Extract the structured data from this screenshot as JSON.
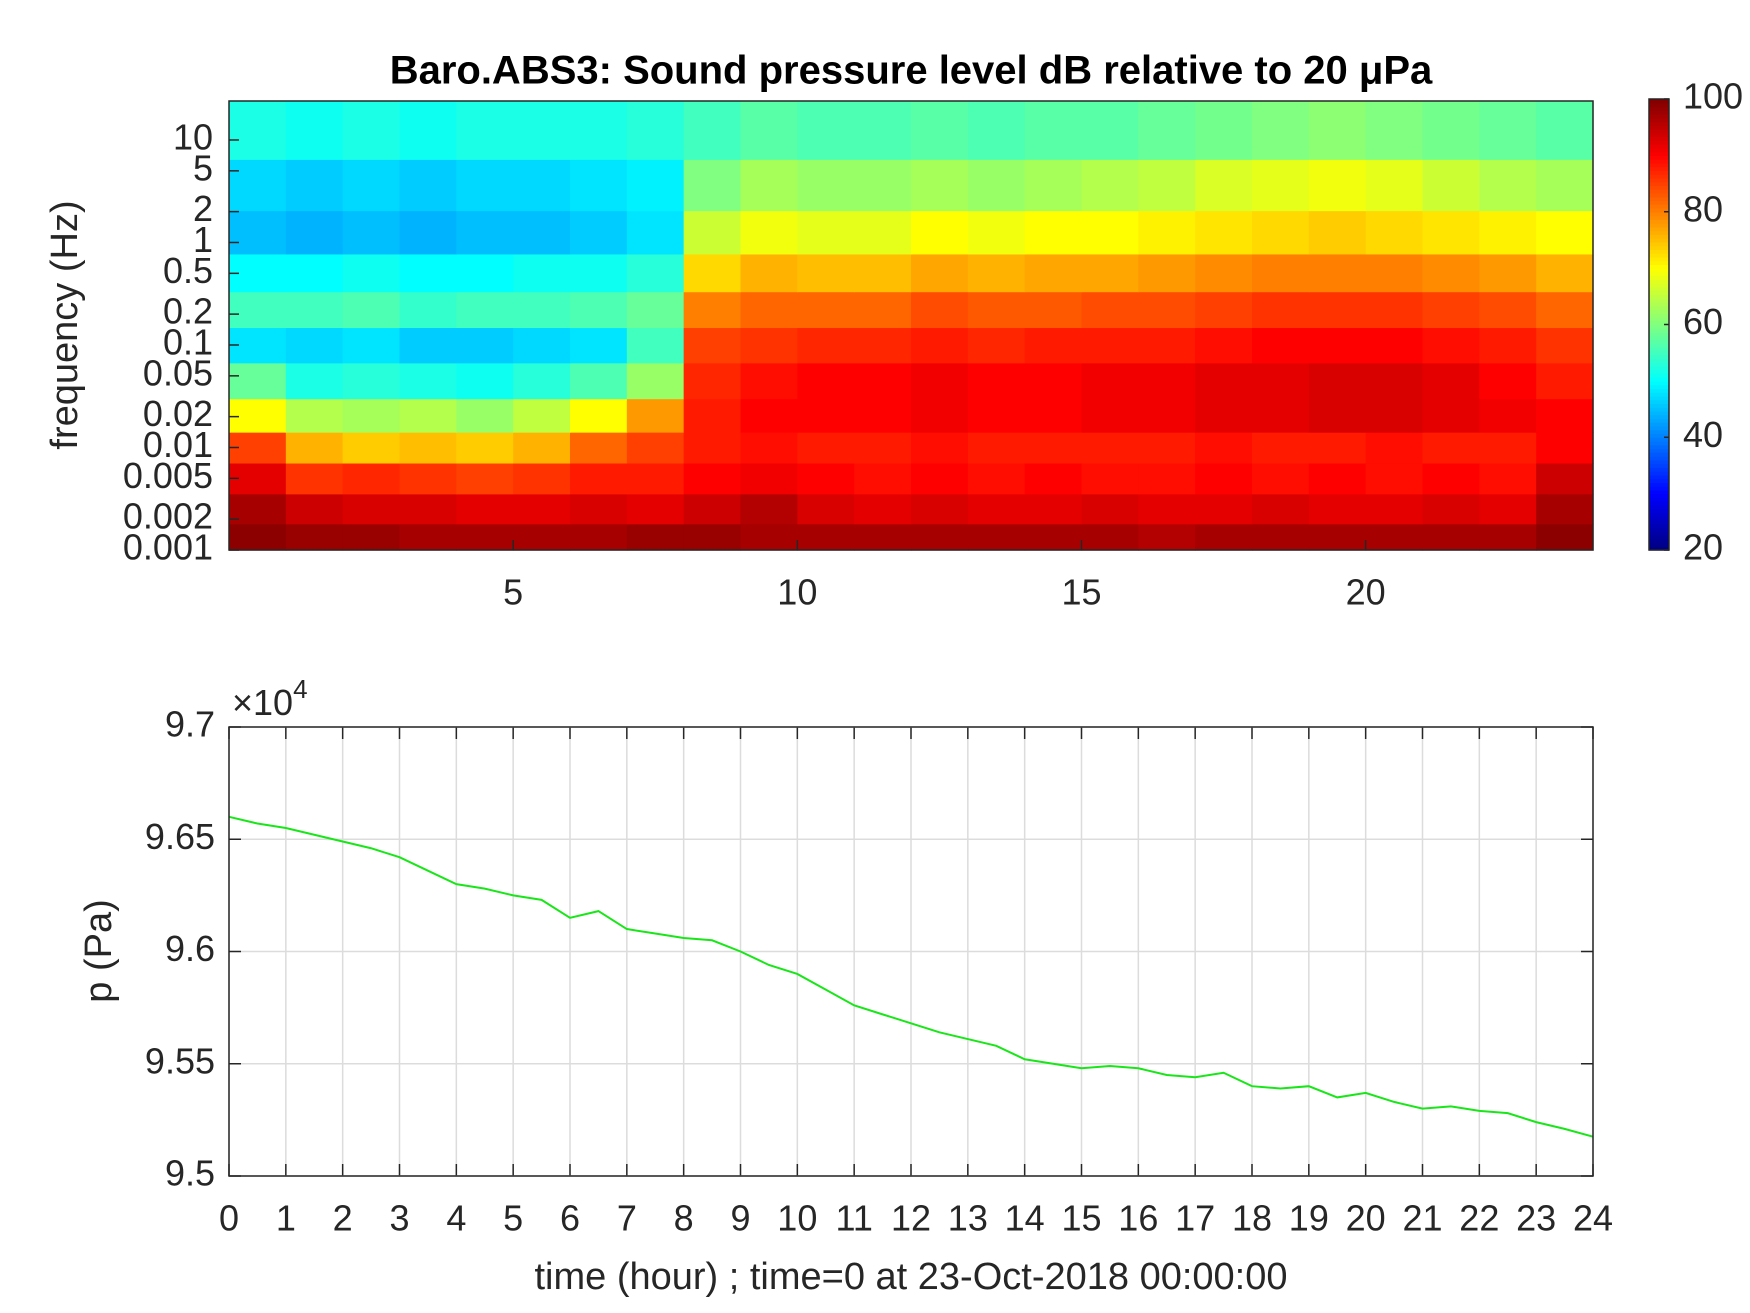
{
  "chart_data": [
    {
      "type": "heatmap",
      "title": "Baro.ABS3: Sound pressure level dB relative to 20 μPa",
      "ylabel": "frequency (Hz)",
      "log_y": true,
      "colormap": "jet",
      "x": [
        0.5,
        1.5,
        2.5,
        3.5,
        4.5,
        5.5,
        6.5,
        7.5,
        8.5,
        9.5,
        10.5,
        11.5,
        12.5,
        13.5,
        14.5,
        15.5,
        16.5,
        17.5,
        18.5,
        19.5,
        20.5,
        21.5,
        22.5,
        23.5
      ],
      "y": [
        0.0013,
        0.0025,
        0.005,
        0.01,
        0.02,
        0.045,
        0.1,
        0.22,
        0.5,
        1.2,
        3.5,
        12
      ],
      "z": [
        [
          99,
          98,
          98,
          97,
          97,
          97,
          97,
          98,
          98,
          97,
          97,
          97,
          97,
          97,
          97,
          97,
          96,
          97,
          97,
          97,
          97,
          97,
          97,
          99
        ],
        [
          97,
          94,
          93,
          93,
          92,
          92,
          93,
          92,
          94,
          96,
          93,
          92,
          93,
          92,
          92,
          93,
          92,
          92,
          93,
          92,
          92,
          93,
          92,
          97
        ],
        [
          92,
          86,
          87,
          86,
          85,
          86,
          88,
          88,
          90,
          91,
          90,
          89,
          90,
          89,
          90,
          89,
          89,
          90,
          89,
          90,
          89,
          90,
          89,
          94
        ],
        [
          85,
          76,
          74,
          75,
          74,
          76,
          82,
          85,
          88,
          89,
          88,
          88,
          89,
          88,
          88,
          88,
          88,
          89,
          88,
          88,
          89,
          88,
          88,
          90
        ],
        [
          70,
          64,
          63,
          64,
          62,
          65,
          70,
          78,
          88,
          90,
          90,
          90,
          91,
          90,
          90,
          91,
          91,
          92,
          92,
          93,
          93,
          92,
          91,
          90
        ],
        [
          58,
          52,
          53,
          52,
          51,
          53,
          56,
          62,
          87,
          89,
          90,
          90,
          91,
          90,
          90,
          91,
          91,
          92,
          92,
          93,
          93,
          92,
          90,
          88
        ],
        [
          48,
          47,
          48,
          46,
          46,
          47,
          48,
          55,
          85,
          86,
          87,
          87,
          88,
          87,
          88,
          88,
          88,
          89,
          90,
          90,
          90,
          89,
          88,
          86
        ],
        [
          55,
          55,
          56,
          54,
          55,
          55,
          56,
          58,
          80,
          82,
          82,
          82,
          84,
          83,
          83,
          84,
          84,
          85,
          86,
          86,
          86,
          85,
          84,
          82
        ],
        [
          50,
          50,
          51,
          50,
          50,
          51,
          51,
          53,
          73,
          76,
          75,
          75,
          77,
          76,
          77,
          77,
          78,
          79,
          80,
          80,
          80,
          79,
          78,
          76
        ],
        [
          45,
          44,
          45,
          44,
          45,
          45,
          46,
          48,
          66,
          69,
          68,
          68,
          70,
          69,
          70,
          70,
          71,
          72,
          73,
          74,
          73,
          72,
          71,
          70
        ],
        [
          47,
          46,
          47,
          46,
          47,
          47,
          48,
          49,
          60,
          63,
          62,
          62,
          63,
          62,
          63,
          64,
          65,
          67,
          68,
          69,
          68,
          66,
          64,
          63
        ],
        [
          52,
          51,
          52,
          51,
          52,
          52,
          52,
          53,
          55,
          57,
          56,
          56,
          57,
          56,
          57,
          57,
          58,
          59,
          60,
          61,
          60,
          59,
          58,
          57
        ]
      ],
      "xlim": [
        0,
        24
      ],
      "xticks": [
        5,
        10,
        15,
        20
      ],
      "ylim": [
        0.001,
        24
      ],
      "yticks": [
        0.001,
        0.002,
        0.005,
        0.01,
        0.02,
        0.05,
        0.1,
        0.2,
        0.5,
        1,
        2,
        5,
        10
      ],
      "clim": [
        20,
        100
      ],
      "cticks": [
        20,
        40,
        60,
        80,
        100
      ]
    },
    {
      "type": "line",
      "xlabel": "time (hour) ; time=0 at 23-Oct-2018 00:00:00",
      "ylabel": "p (Pa)",
      "y_multiplier": {
        "base": "×10",
        "exponent": "4"
      },
      "color": "#19e619",
      "grid": true,
      "x": [
        0,
        0.5,
        1,
        1.5,
        2,
        2.5,
        3,
        3.5,
        4,
        4.5,
        5,
        5.5,
        6,
        6.5,
        7,
        7.5,
        8,
        8.5,
        9,
        9.5,
        10,
        10.5,
        11,
        11.5,
        12,
        12.5,
        13,
        13.5,
        14,
        14.5,
        15,
        15.5,
        16,
        16.5,
        17,
        17.5,
        18,
        18.5,
        19,
        19.5,
        20,
        20.5,
        21,
        21.5,
        22,
        22.5,
        23,
        23.5,
        24
      ],
      "values": [
        96600,
        96570,
        96550,
        96520,
        96490,
        96460,
        96420,
        96360,
        96300,
        96280,
        96250,
        96230,
        96150,
        96180,
        96100,
        96080,
        96060,
        96050,
        96000,
        95940,
        95900,
        95830,
        95760,
        95720,
        95680,
        95640,
        95610,
        95580,
        95520,
        95500,
        95480,
        95490,
        95480,
        95450,
        95440,
        95460,
        95400,
        95390,
        95400,
        95350,
        95370,
        95330,
        95300,
        95310,
        95290,
        95280,
        95240,
        95210,
        95175
      ],
      "xlim": [
        0,
        24
      ],
      "xticks": [
        0,
        1,
        2,
        3,
        4,
        5,
        6,
        7,
        8,
        9,
        10,
        11,
        12,
        13,
        14,
        15,
        16,
        17,
        18,
        19,
        20,
        21,
        22,
        23,
        24
      ],
      "ylim": [
        95000,
        97000
      ],
      "yticks": [
        {
          "value": 95000,
          "label": "9.5"
        },
        {
          "value": 95500,
          "label": "9.55"
        },
        {
          "value": 96000,
          "label": "9.6"
        },
        {
          "value": 96500,
          "label": "9.65"
        },
        {
          "value": 97000,
          "label": "9.7"
        }
      ]
    }
  ]
}
